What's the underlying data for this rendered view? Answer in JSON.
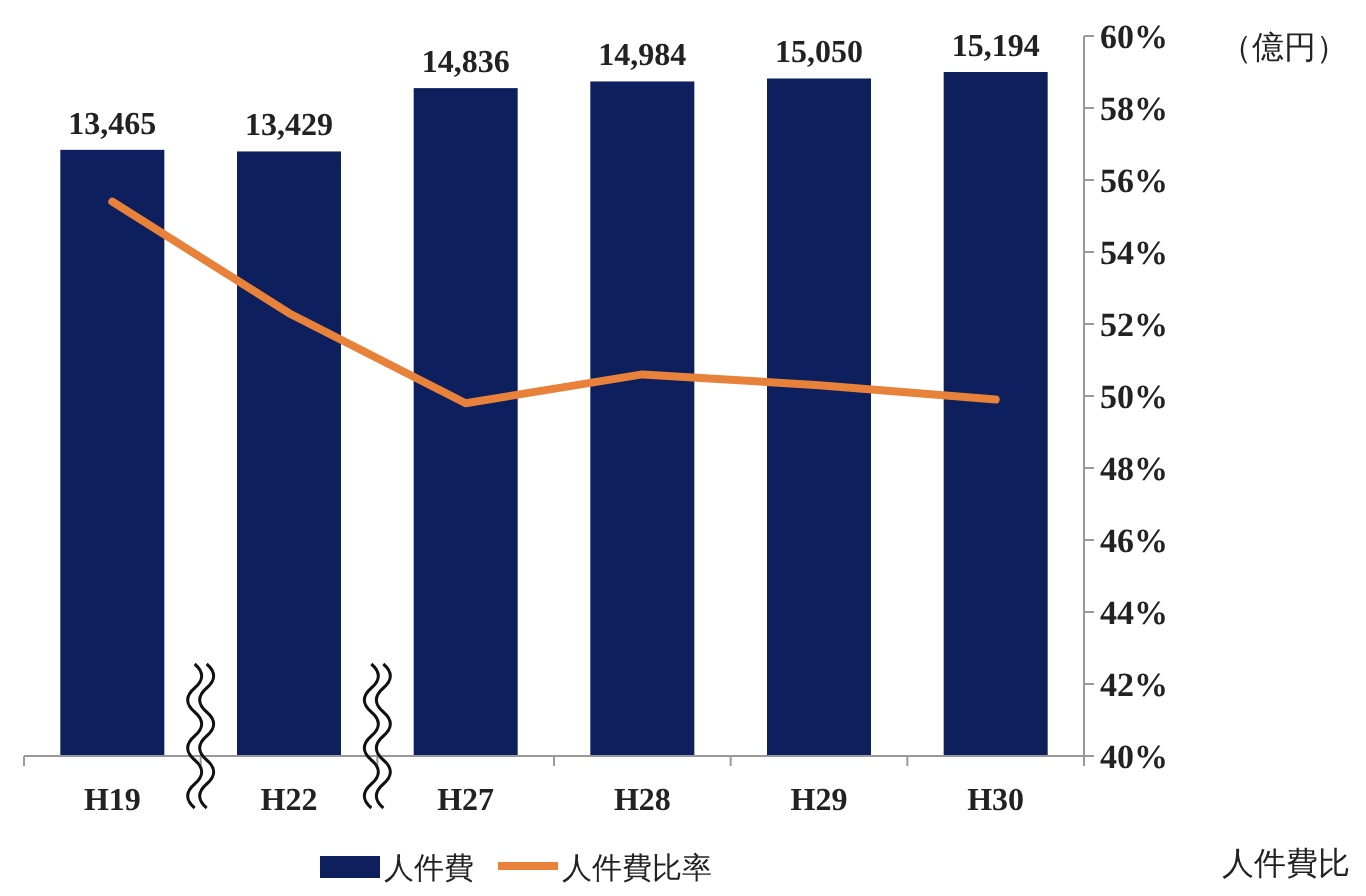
{
  "chart_data": {
    "type": "bar",
    "categories": [
      "H19",
      "H22",
      "H27",
      "H28",
      "H29",
      "H30"
    ],
    "series": [
      {
        "name": "人件費",
        "color": "#0d1f5c",
        "values": [
          13465,
          13429,
          14836,
          14984,
          15050,
          15194
        ],
        "value_labels": [
          "13,465",
          "13,429",
          "14,836",
          "14,984",
          "15,050",
          "15,194"
        ]
      },
      {
        "name": "人件費比率",
        "type": "line",
        "axis": "y2",
        "color": "#e8823a",
        "values": [
          55.4,
          52.3,
          49.8,
          50.6,
          50.3,
          49.9
        ]
      }
    ],
    "tick_labels": "xy2",
    "y2lim": [
      40,
      60
    ],
    "y2ticks": [
      {
        "value": 40,
        "label": "40%"
      },
      {
        "value": 42,
        "label": "42%"
      },
      {
        "value": 44,
        "label": "44%"
      },
      {
        "value": 46,
        "label": "46%"
      },
      {
        "value": 48,
        "label": "48%"
      },
      {
        "value": 50,
        "label": "50%"
      },
      {
        "value": 52,
        "label": "52%"
      },
      {
        "value": 54,
        "label": "54%"
      },
      {
        "value": 56,
        "label": "56%"
      },
      {
        "value": 58,
        "label": "58%"
      },
      {
        "value": 60,
        "label": "60%"
      }
    ],
    "legend": "bottom",
    "grid": false,
    "marker": "none",
    "line_style": "solid",
    "annotations": [
      "（億円）",
      "人件費比"
    ]
  }
}
